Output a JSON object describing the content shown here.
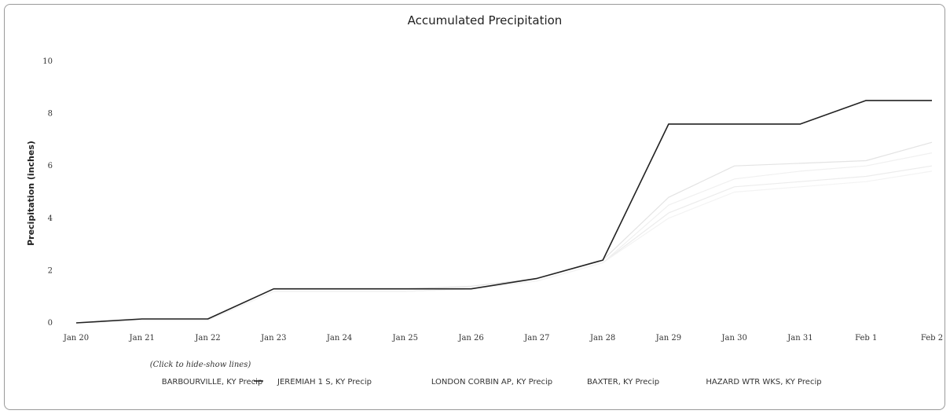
{
  "chart_data": {
    "type": "line",
    "title": "Accumulated Precipitation",
    "xlabel": "",
    "ylabel": "Precipitation (inches)",
    "ylim": [
      0,
      10
    ],
    "yticks": [
      0,
      2,
      4,
      6,
      8,
      10
    ],
    "categories": [
      "Jan 20",
      "Jan 21",
      "Jan 22",
      "Jan 23",
      "Jan 24",
      "Jan 25",
      "Jan 26",
      "Jan 27",
      "Jan 28",
      "Jan 29",
      "Jan 30",
      "Jan 31",
      "Feb 1",
      "Feb 2"
    ],
    "series": [
      {
        "name": "BARBOURVILLE, KY Precip",
        "color": "#e3e3e3",
        "values": [
          0,
          0.15,
          0.15,
          1.3,
          1.3,
          1.3,
          1.4,
          1.7,
          2.4,
          4.8,
          6.0,
          6.1,
          6.2,
          6.9
        ]
      },
      {
        "name": "JEREMIAH 1 S, KY Precip",
        "color": "#222222",
        "values": [
          0,
          0.15,
          0.15,
          1.3,
          1.3,
          1.3,
          1.3,
          1.7,
          2.4,
          7.6,
          7.6,
          7.6,
          8.5,
          8.5
        ]
      },
      {
        "name": "LONDON CORBIN AP, KY Precip",
        "color": "#ececec",
        "values": [
          0,
          0.1,
          0.1,
          1.2,
          1.2,
          1.2,
          1.3,
          1.6,
          2.3,
          4.2,
          5.2,
          5.4,
          5.6,
          6.0
        ]
      },
      {
        "name": "BAXTER, KY Precip",
        "color": "#f0f0f0",
        "values": [
          0,
          0.1,
          0.1,
          1.2,
          1.2,
          1.2,
          1.3,
          1.6,
          2.3,
          4.5,
          5.5,
          5.8,
          6.0,
          6.5
        ]
      },
      {
        "name": "HAZARD WTR WKS, KY Precip",
        "color": "#f3f3f3",
        "values": [
          0,
          0.1,
          0.1,
          1.2,
          1.2,
          1.2,
          1.3,
          1.6,
          2.3,
          4.0,
          5.0,
          5.2,
          5.4,
          5.8
        ]
      }
    ],
    "legend_note": "(Click to hide-show lines)",
    "legend_position": "bottom",
    "grid": false
  }
}
